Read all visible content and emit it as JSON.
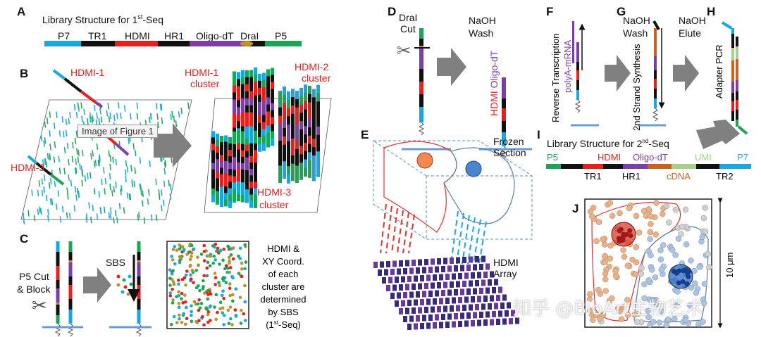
{
  "panels": {
    "a": {
      "letter": "A",
      "title": "Library Structure for 1",
      "title_sup": "st",
      "title_end": "-Seq",
      "segments": [
        "P7",
        "TR1",
        "HDMI",
        "HR1",
        "Oligo-dT",
        "DraI",
        "P5"
      ]
    },
    "b": {
      "letter": "B",
      "hdmi1": "HDMI-1",
      "hdmi3": "HDMI-3",
      "tooltip": "Image of Figure 1",
      "c1a": "HDMI-1",
      "c1b": "cluster",
      "c2a": "HDMI-2",
      "c2b": "cluster",
      "c3a": "HDMI-3",
      "c3b": "cluster"
    },
    "c": {
      "letter": "C",
      "cut1": "P5 Cut",
      "cut2": "& Block",
      "sbs": "SBS",
      "desc": [
        "HDMI &",
        "XY Coord.",
        "of each",
        "cluster are",
        "determined",
        "by SBS"
      ],
      "desc_last": "(1",
      "desc_sup": "st",
      "desc_end": "-Seq)"
    },
    "d": {
      "letter": "D",
      "cut1": "DraI",
      "cut2": "Cut",
      "wash1": "NaOH",
      "wash2": "Wash",
      "hdmi": "HDMI",
      "oligo": "Oligo-dT"
    },
    "e": {
      "letter": "E",
      "frozen1": "Frozen",
      "frozen2": "Section",
      "array1": "HDMI",
      "array2": "Array"
    },
    "f": {
      "letter": "F",
      "rt": "Reverse Transcription",
      "polya": "polyA-mRNA",
      "wash1": "NaOH",
      "wash2": "Wash"
    },
    "g": {
      "letter": "G",
      "ss": "2nd Strand Synthesis",
      "elute1": "NaOH",
      "elute2": "Elute"
    },
    "h": {
      "letter": "H",
      "pcr": "Adapter PCR"
    },
    "i": {
      "letter": "I",
      "title": "Library Structure for 2",
      "title_sup": "nd",
      "title_end": "-Seq",
      "top": [
        "P5",
        "HDMI",
        "Oligo-dT",
        "UMI",
        "P7"
      ],
      "bottom": [
        "TR1",
        "HR1",
        "cDNA",
        "TR2"
      ]
    },
    "j": {
      "letter": "J",
      "scale": "10 μm"
    }
  },
  "colors": {
    "p7": "#1aa7e0",
    "p5": "#1ca457",
    "hdmi": "#e8201c",
    "oligo": "#7b3fa6",
    "dra": "#b8942a",
    "cdna": "#c8641e",
    "umi": "#a8cf8e",
    "black": "#111111",
    "arrow": "#808080",
    "base": "#6e9ccc"
  },
  "watermark": "知乎 @BioArt生物艺术"
}
